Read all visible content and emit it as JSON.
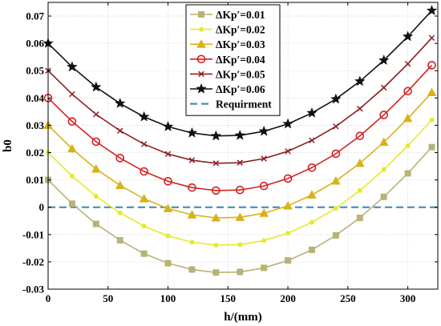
{
  "chart_data": {
    "type": "line",
    "title": "",
    "xlabel": "h/(mm)",
    "ylabel": "b0",
    "xlim": [
      0,
      325
    ],
    "ylim": [
      -0.03,
      0.075
    ],
    "x_ticks": [
      0,
      50,
      100,
      150,
      200,
      250,
      300
    ],
    "x_tick_labels": [
      "0",
      "50",
      "100",
      "150",
      "200",
      "250",
      "300"
    ],
    "y_ticks": [
      -0.03,
      -0.02,
      -0.01,
      0,
      0.01,
      0.02,
      0.03,
      0.04,
      0.05,
      0.06,
      0.07
    ],
    "y_tick_labels": [
      "-0.03",
      "-0.02",
      "-0.01",
      "0",
      "0.01",
      "0.02",
      "0.03",
      "0.04",
      "0.05",
      "0.06",
      "0.07"
    ],
    "grid": true,
    "legend_position": "top-right",
    "x": [
      0,
      20,
      40,
      60,
      80,
      100,
      120,
      140,
      160,
      180,
      200,
      220,
      240,
      260,
      280,
      300,
      320
    ],
    "series": [
      {
        "name": "ΔKp′=0.01",
        "color": "#b9b276",
        "marker": "square",
        "values": [
          0.01,
          0.0013,
          -0.0061,
          -0.0121,
          -0.017,
          -0.0205,
          -0.0228,
          -0.0239,
          -0.0237,
          -0.0222,
          -0.0195,
          -0.0156,
          -0.0103,
          -0.0039,
          0.0038,
          0.0124,
          0.022
        ]
      },
      {
        "name": "ΔKp′=0.02",
        "color": "#e8e830",
        "marker": "dot",
        "values": [
          0.02,
          0.0114,
          0.004,
          -0.0021,
          -0.0069,
          -0.0105,
          -0.0128,
          -0.0139,
          -0.0137,
          -0.0122,
          -0.0095,
          -0.0055,
          -0.0004,
          0.0061,
          0.0138,
          0.0225,
          0.032
        ]
      },
      {
        "name": "ΔKp′=0.03",
        "color": "#d9b21a",
        "marker": "triangle",
        "values": [
          0.03,
          0.0214,
          0.014,
          0.008,
          0.0031,
          -0.0005,
          -0.0028,
          -0.0039,
          -0.0037,
          -0.0022,
          0.0005,
          0.0045,
          0.0096,
          0.0161,
          0.0238,
          0.0325,
          0.042
        ]
      },
      {
        "name": "ΔKp′=0.04",
        "color": "#d42222",
        "marker": "circle",
        "values": [
          0.04,
          0.0314,
          0.024,
          0.018,
          0.0131,
          0.0095,
          0.0072,
          0.0061,
          0.0063,
          0.0078,
          0.0105,
          0.0145,
          0.0196,
          0.0261,
          0.0338,
          0.0425,
          0.052
        ]
      },
      {
        "name": "ΔKp′=0.05",
        "color": "#8b1f1f",
        "marker": "x",
        "values": [
          0.05,
          0.0414,
          0.034,
          0.028,
          0.0231,
          0.0195,
          0.0172,
          0.0161,
          0.0163,
          0.0178,
          0.0205,
          0.0245,
          0.0296,
          0.0361,
          0.0438,
          0.0525,
          0.062
        ]
      },
      {
        "name": "ΔKp′=0.06",
        "color": "#111111",
        "marker": "star",
        "values": [
          0.06,
          0.0514,
          0.044,
          0.038,
          0.0331,
          0.0295,
          0.0272,
          0.0261,
          0.0263,
          0.0278,
          0.0305,
          0.0345,
          0.0396,
          0.0461,
          0.0538,
          0.0625,
          0.072
        ]
      }
    ],
    "reference_line": {
      "name": "Requirment",
      "color": "#4a90b8",
      "style": "dashed",
      "y": 0
    }
  }
}
